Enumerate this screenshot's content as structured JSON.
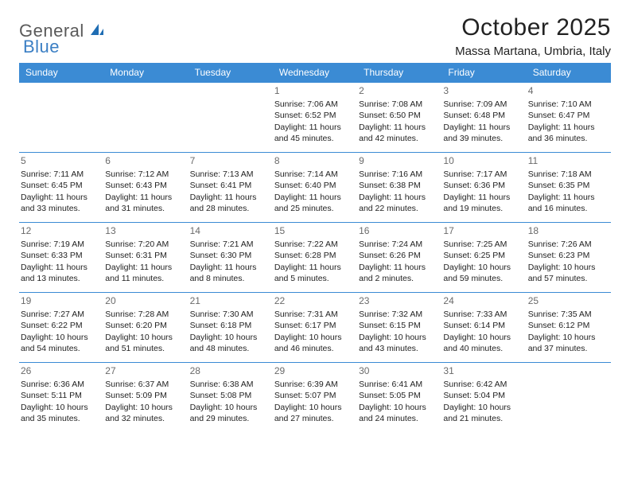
{
  "logo": {
    "text1": "General",
    "text2": "Blue"
  },
  "title": "October 2025",
  "location": "Massa Martana, Umbria, Italy",
  "colors": {
    "header_bg": "#3b8bd4",
    "header_text": "#ffffff",
    "row_border": "#3b8bd4",
    "daynum": "#6a6a6a",
    "body_text": "#222222",
    "logo_gray": "#5a5a5a",
    "logo_blue": "#3b7fc4",
    "page_bg": "#ffffff"
  },
  "day_headers": [
    "Sunday",
    "Monday",
    "Tuesday",
    "Wednesday",
    "Thursday",
    "Friday",
    "Saturday"
  ],
  "weeks": [
    [
      null,
      null,
      null,
      {
        "n": "1",
        "sunrise": "7:06 AM",
        "sunset": "6:52 PM",
        "dl1": "Daylight: 11 hours",
        "dl2": "and 45 minutes."
      },
      {
        "n": "2",
        "sunrise": "7:08 AM",
        "sunset": "6:50 PM",
        "dl1": "Daylight: 11 hours",
        "dl2": "and 42 minutes."
      },
      {
        "n": "3",
        "sunrise": "7:09 AM",
        "sunset": "6:48 PM",
        "dl1": "Daylight: 11 hours",
        "dl2": "and 39 minutes."
      },
      {
        "n": "4",
        "sunrise": "7:10 AM",
        "sunset": "6:47 PM",
        "dl1": "Daylight: 11 hours",
        "dl2": "and 36 minutes."
      }
    ],
    [
      {
        "n": "5",
        "sunrise": "7:11 AM",
        "sunset": "6:45 PM",
        "dl1": "Daylight: 11 hours",
        "dl2": "and 33 minutes."
      },
      {
        "n": "6",
        "sunrise": "7:12 AM",
        "sunset": "6:43 PM",
        "dl1": "Daylight: 11 hours",
        "dl2": "and 31 minutes."
      },
      {
        "n": "7",
        "sunrise": "7:13 AM",
        "sunset": "6:41 PM",
        "dl1": "Daylight: 11 hours",
        "dl2": "and 28 minutes."
      },
      {
        "n": "8",
        "sunrise": "7:14 AM",
        "sunset": "6:40 PM",
        "dl1": "Daylight: 11 hours",
        "dl2": "and 25 minutes."
      },
      {
        "n": "9",
        "sunrise": "7:16 AM",
        "sunset": "6:38 PM",
        "dl1": "Daylight: 11 hours",
        "dl2": "and 22 minutes."
      },
      {
        "n": "10",
        "sunrise": "7:17 AM",
        "sunset": "6:36 PM",
        "dl1": "Daylight: 11 hours",
        "dl2": "and 19 minutes."
      },
      {
        "n": "11",
        "sunrise": "7:18 AM",
        "sunset": "6:35 PM",
        "dl1": "Daylight: 11 hours",
        "dl2": "and 16 minutes."
      }
    ],
    [
      {
        "n": "12",
        "sunrise": "7:19 AM",
        "sunset": "6:33 PM",
        "dl1": "Daylight: 11 hours",
        "dl2": "and 13 minutes."
      },
      {
        "n": "13",
        "sunrise": "7:20 AM",
        "sunset": "6:31 PM",
        "dl1": "Daylight: 11 hours",
        "dl2": "and 11 minutes."
      },
      {
        "n": "14",
        "sunrise": "7:21 AM",
        "sunset": "6:30 PM",
        "dl1": "Daylight: 11 hours",
        "dl2": "and 8 minutes."
      },
      {
        "n": "15",
        "sunrise": "7:22 AM",
        "sunset": "6:28 PM",
        "dl1": "Daylight: 11 hours",
        "dl2": "and 5 minutes."
      },
      {
        "n": "16",
        "sunrise": "7:24 AM",
        "sunset": "6:26 PM",
        "dl1": "Daylight: 11 hours",
        "dl2": "and 2 minutes."
      },
      {
        "n": "17",
        "sunrise": "7:25 AM",
        "sunset": "6:25 PM",
        "dl1": "Daylight: 10 hours",
        "dl2": "and 59 minutes."
      },
      {
        "n": "18",
        "sunrise": "7:26 AM",
        "sunset": "6:23 PM",
        "dl1": "Daylight: 10 hours",
        "dl2": "and 57 minutes."
      }
    ],
    [
      {
        "n": "19",
        "sunrise": "7:27 AM",
        "sunset": "6:22 PM",
        "dl1": "Daylight: 10 hours",
        "dl2": "and 54 minutes."
      },
      {
        "n": "20",
        "sunrise": "7:28 AM",
        "sunset": "6:20 PM",
        "dl1": "Daylight: 10 hours",
        "dl2": "and 51 minutes."
      },
      {
        "n": "21",
        "sunrise": "7:30 AM",
        "sunset": "6:18 PM",
        "dl1": "Daylight: 10 hours",
        "dl2": "and 48 minutes."
      },
      {
        "n": "22",
        "sunrise": "7:31 AM",
        "sunset": "6:17 PM",
        "dl1": "Daylight: 10 hours",
        "dl2": "and 46 minutes."
      },
      {
        "n": "23",
        "sunrise": "7:32 AM",
        "sunset": "6:15 PM",
        "dl1": "Daylight: 10 hours",
        "dl2": "and 43 minutes."
      },
      {
        "n": "24",
        "sunrise": "7:33 AM",
        "sunset": "6:14 PM",
        "dl1": "Daylight: 10 hours",
        "dl2": "and 40 minutes."
      },
      {
        "n": "25",
        "sunrise": "7:35 AM",
        "sunset": "6:12 PM",
        "dl1": "Daylight: 10 hours",
        "dl2": "and 37 minutes."
      }
    ],
    [
      {
        "n": "26",
        "sunrise": "6:36 AM",
        "sunset": "5:11 PM",
        "dl1": "Daylight: 10 hours",
        "dl2": "and 35 minutes."
      },
      {
        "n": "27",
        "sunrise": "6:37 AM",
        "sunset": "5:09 PM",
        "dl1": "Daylight: 10 hours",
        "dl2": "and 32 minutes."
      },
      {
        "n": "28",
        "sunrise": "6:38 AM",
        "sunset": "5:08 PM",
        "dl1": "Daylight: 10 hours",
        "dl2": "and 29 minutes."
      },
      {
        "n": "29",
        "sunrise": "6:39 AM",
        "sunset": "5:07 PM",
        "dl1": "Daylight: 10 hours",
        "dl2": "and 27 minutes."
      },
      {
        "n": "30",
        "sunrise": "6:41 AM",
        "sunset": "5:05 PM",
        "dl1": "Daylight: 10 hours",
        "dl2": "and 24 minutes."
      },
      {
        "n": "31",
        "sunrise": "6:42 AM",
        "sunset": "5:04 PM",
        "dl1": "Daylight: 10 hours",
        "dl2": "and 21 minutes."
      },
      null
    ]
  ],
  "labels": {
    "sunrise_prefix": "Sunrise: ",
    "sunset_prefix": "Sunset: "
  }
}
